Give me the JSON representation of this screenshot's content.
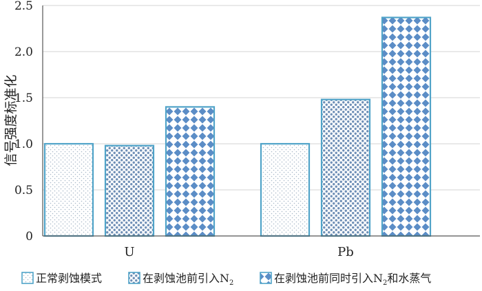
{
  "chart_data": {
    "type": "bar",
    "categories": [
      "U",
      "Pb"
    ],
    "ylabel": "信号强度标准化",
    "ylim": [
      0,
      2.5
    ],
    "yticks": [
      "0",
      "0.5",
      "1.0",
      "1.5",
      "2.0",
      "2.5"
    ],
    "grid": true,
    "legend_position": "bottom",
    "series": [
      {
        "name": "正常剥蚀模式",
        "name_base": "正常剥蚀模式",
        "name_sub": "",
        "name_tail": "",
        "pattern": "fine-dots",
        "values": [
          1.0,
          1.0
        ]
      },
      {
        "name": "在剥蚀池前引入N2",
        "name_base": "在剥蚀池前引入N",
        "name_sub": "2",
        "name_tail": "",
        "pattern": "dense-dots",
        "values": [
          0.98,
          1.48
        ]
      },
      {
        "name": "在剥蚀池前同时引入N2和水蒸气",
        "name_base": "在剥蚀池前同时引入N",
        "name_sub": "2",
        "name_tail": "和水蒸气",
        "pattern": "diamonds",
        "values": [
          1.4,
          2.37
        ]
      }
    ],
    "colors": {
      "border": "#4fa3c8",
      "dot": "#a9b9c8",
      "dense": "#6f8fb6",
      "diamond": "#5b8dc6",
      "grid": "#d3d3d3",
      "axis": "#555555"
    }
  }
}
